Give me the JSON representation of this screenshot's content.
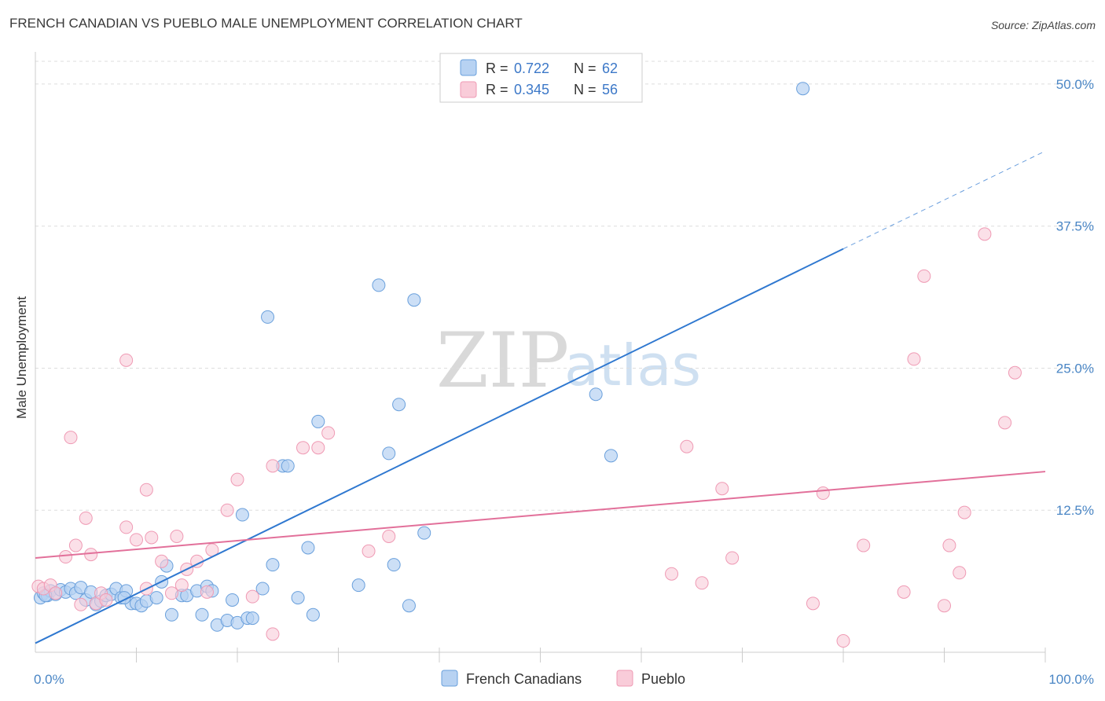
{
  "title": "FRENCH CANADIAN VS PUEBLO MALE UNEMPLOYMENT CORRELATION CHART",
  "source": "Source: ZipAtlas.com",
  "watermark": {
    "zip": "ZIP",
    "atlas": "atlas"
  },
  "colors": {
    "blue_fill": "#b7d2f2",
    "blue_stroke": "#6aa0dc",
    "blue_line": "#2f78d0",
    "pink_fill": "#f9ccd9",
    "pink_stroke": "#ef9ab4",
    "pink_line": "#e2709a",
    "grid": "#dddddd",
    "tick_text": "#4a86c5"
  },
  "legend": {
    "rows": [
      {
        "r_label": "R =",
        "r_value": "0.722",
        "n_label": "N =",
        "n_value": "62"
      },
      {
        "r_label": "R =",
        "r_value": "0.345",
        "n_label": "N =",
        "n_value": "56"
      }
    ]
  },
  "chart_data": {
    "type": "scatter",
    "title": "FRENCH CANADIAN VS PUEBLO MALE UNEMPLOYMENT CORRELATION CHART",
    "xlabel": "",
    "ylabel": "Male Unemployment",
    "xlim": [
      0,
      100
    ],
    "ylim": [
      0,
      52
    ],
    "x_tick_labels": [
      {
        "value": 0,
        "label": "0.0%"
      },
      {
        "value": 100,
        "label": "100.0%"
      }
    ],
    "y_tick_labels": [
      {
        "value": 12.5,
        "label": "12.5%"
      },
      {
        "value": 25.0,
        "label": "25.0%"
      },
      {
        "value": 37.5,
        "label": "37.5%"
      },
      {
        "value": 50.0,
        "label": "50.0%"
      }
    ],
    "series": [
      {
        "name": "French Canadians",
        "color": "#b7d2f2",
        "trend": {
          "x0": 0,
          "y0": 0.8,
          "x1": 80,
          "y1": 35.5,
          "dashed_to_x": 100,
          "dashed_to_y": 44.1
        },
        "points": [
          [
            0.5,
            4.8
          ],
          [
            0.8,
            5.2
          ],
          [
            1.2,
            5.0
          ],
          [
            1.5,
            5.4
          ],
          [
            2.0,
            5.1
          ],
          [
            2.5,
            5.5
          ],
          [
            3.0,
            5.3
          ],
          [
            3.5,
            5.6
          ],
          [
            4.0,
            5.2
          ],
          [
            4.5,
            5.7
          ],
          [
            5.0,
            4.6
          ],
          [
            5.5,
            5.3
          ],
          [
            6.0,
            4.2
          ],
          [
            6.5,
            4.5
          ],
          [
            7.0,
            5.0
          ],
          [
            7.5,
            5.1
          ],
          [
            8.0,
            5.6
          ],
          [
            8.5,
            4.8
          ],
          [
            9.0,
            5.4
          ],
          [
            9.5,
            4.3
          ],
          [
            10.0,
            4.3
          ],
          [
            10.5,
            4.1
          ],
          [
            11.0,
            4.5
          ],
          [
            12.0,
            4.8
          ],
          [
            12.5,
            6.2
          ],
          [
            13.0,
            7.6
          ],
          [
            13.5,
            3.3
          ],
          [
            14.5,
            5.0
          ],
          [
            15.0,
            5.0
          ],
          [
            16.0,
            5.4
          ],
          [
            16.5,
            3.3
          ],
          [
            17.0,
            5.8
          ],
          [
            17.5,
            5.4
          ],
          [
            18.0,
            2.4
          ],
          [
            19.0,
            2.8
          ],
          [
            19.5,
            4.6
          ],
          [
            20.0,
            2.6
          ],
          [
            20.5,
            12.1
          ],
          [
            21.0,
            3.0
          ],
          [
            21.5,
            3.0
          ],
          [
            22.5,
            5.6
          ],
          [
            23.0,
            29.5
          ],
          [
            23.5,
            7.7
          ],
          [
            24.5,
            16.4
          ],
          [
            25.0,
            16.4
          ],
          [
            26.0,
            4.8
          ],
          [
            27.0,
            9.2
          ],
          [
            27.5,
            3.3
          ],
          [
            28.0,
            20.3
          ],
          [
            32.0,
            5.9
          ],
          [
            34.0,
            32.3
          ],
          [
            35.0,
            17.5
          ],
          [
            35.5,
            7.7
          ],
          [
            36.0,
            21.8
          ],
          [
            37.0,
            4.1
          ],
          [
            37.5,
            31.0
          ],
          [
            38.5,
            10.5
          ],
          [
            55.5,
            22.7
          ],
          [
            57.0,
            17.3
          ],
          [
            76.0,
            49.6
          ],
          [
            1.0,
            5.0
          ],
          [
            8.8,
            4.8
          ]
        ]
      },
      {
        "name": "Pueblo",
        "color": "#f9ccd9",
        "trend": {
          "x0": 0,
          "y0": 8.3,
          "x1": 100,
          "y1": 15.9
        },
        "points": [
          [
            0.3,
            5.8
          ],
          [
            0.8,
            5.6
          ],
          [
            1.5,
            5.9
          ],
          [
            2.0,
            5.2
          ],
          [
            3.0,
            8.4
          ],
          [
            3.5,
            18.9
          ],
          [
            4.0,
            9.4
          ],
          [
            4.5,
            4.2
          ],
          [
            5.0,
            11.8
          ],
          [
            5.5,
            8.6
          ],
          [
            6.0,
            4.3
          ],
          [
            6.5,
            5.2
          ],
          [
            7.0,
            4.6
          ],
          [
            9.0,
            11.0
          ],
          [
            9.0,
            25.7
          ],
          [
            10.0,
            9.9
          ],
          [
            11.0,
            5.6
          ],
          [
            11.0,
            14.3
          ],
          [
            11.5,
            10.1
          ],
          [
            12.5,
            8.0
          ],
          [
            13.5,
            5.2
          ],
          [
            14.0,
            10.2
          ],
          [
            14.5,
            5.9
          ],
          [
            15.0,
            7.3
          ],
          [
            16.0,
            8.0
          ],
          [
            17.0,
            5.3
          ],
          [
            17.5,
            9.0
          ],
          [
            19.0,
            12.5
          ],
          [
            20.0,
            15.2
          ],
          [
            21.5,
            4.9
          ],
          [
            23.5,
            16.4
          ],
          [
            23.5,
            1.6
          ],
          [
            26.5,
            18.0
          ],
          [
            28.0,
            18.0
          ],
          [
            29.0,
            19.3
          ],
          [
            33.0,
            8.9
          ],
          [
            35.0,
            10.2
          ],
          [
            63.0,
            6.9
          ],
          [
            64.5,
            18.1
          ],
          [
            66.0,
            6.1
          ],
          [
            68.0,
            14.4
          ],
          [
            69.0,
            8.3
          ],
          [
            77.0,
            4.3
          ],
          [
            78.0,
            14.0
          ],
          [
            80.0,
            1.0
          ],
          [
            82.0,
            9.4
          ],
          [
            86.0,
            5.3
          ],
          [
            87.0,
            25.8
          ],
          [
            88.0,
            33.1
          ],
          [
            90.0,
            4.1
          ],
          [
            90.5,
            9.4
          ],
          [
            91.5,
            7.0
          ],
          [
            92.0,
            12.3
          ],
          [
            94.0,
            36.8
          ],
          [
            96.0,
            20.2
          ],
          [
            97.0,
            24.6
          ]
        ]
      }
    ]
  },
  "bottom_legend": [
    {
      "label": "French Canadians"
    },
    {
      "label": "Pueblo"
    }
  ]
}
